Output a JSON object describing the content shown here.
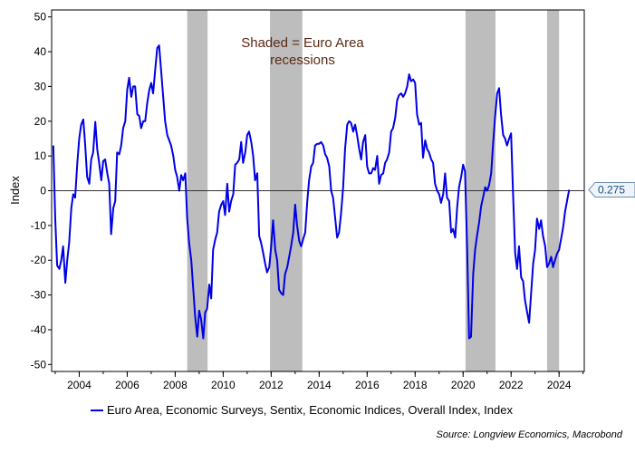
{
  "chart_data": {
    "type": "line",
    "title": "",
    "ylabel": "Index",
    "xlabel": "",
    "ylim": [
      -52,
      52
    ],
    "xlim": [
      2002.85,
      2025.05
    ],
    "yticks": [
      -50,
      -40,
      -30,
      -20,
      -10,
      0,
      10,
      20,
      30,
      40,
      50
    ],
    "xticks": [
      2004,
      2006,
      2008,
      2010,
      2012,
      2014,
      2016,
      2018,
      2020,
      2022,
      2024
    ],
    "zero_line": true,
    "annotation": "Shaded = Euro Area recessions",
    "annotation_lines": [
      "Shaded = Euro Area",
      "recessions"
    ],
    "last_value_label": "0.275",
    "recessions": [
      [
        2008.5,
        2009.35
      ],
      [
        2011.95,
        2013.3
      ],
      [
        2020.1,
        2021.35
      ],
      [
        2023.5,
        2024.0
      ]
    ],
    "series": [
      {
        "name": "Euro Area, Economic Surveys, Sentix, Economic Indices, Overall Index, Index",
        "color": "#0000e6",
        "points": [
          [
            2002.92,
            13
          ],
          [
            2003.0,
            -8
          ],
          [
            2003.08,
            -21.5
          ],
          [
            2003.17,
            -22.5
          ],
          [
            2003.25,
            -20
          ],
          [
            2003.33,
            -16
          ],
          [
            2003.42,
            -26.5
          ],
          [
            2003.5,
            -20
          ],
          [
            2003.58,
            -15
          ],
          [
            2003.67,
            -5
          ],
          [
            2003.75,
            -1
          ],
          [
            2003.83,
            -2
          ],
          [
            2003.92,
            8
          ],
          [
            2004.0,
            15
          ],
          [
            2004.08,
            19
          ],
          [
            2004.17,
            20.5
          ],
          [
            2004.25,
            13
          ],
          [
            2004.33,
            4
          ],
          [
            2004.42,
            2
          ],
          [
            2004.5,
            9
          ],
          [
            2004.58,
            11
          ],
          [
            2004.67,
            19.8
          ],
          [
            2004.75,
            12
          ],
          [
            2004.83,
            8
          ],
          [
            2004.92,
            3
          ],
          [
            2005.0,
            8.5
          ],
          [
            2005.08,
            9
          ],
          [
            2005.17,
            5
          ],
          [
            2005.25,
            2
          ],
          [
            2005.33,
            -12.5
          ],
          [
            2005.42,
            -5
          ],
          [
            2005.5,
            -3
          ],
          [
            2005.58,
            11
          ],
          [
            2005.67,
            10.5
          ],
          [
            2005.75,
            13
          ],
          [
            2005.83,
            18
          ],
          [
            2005.92,
            20
          ],
          [
            2006.0,
            29
          ],
          [
            2006.08,
            32.5
          ],
          [
            2006.17,
            27
          ],
          [
            2006.25,
            30
          ],
          [
            2006.33,
            30
          ],
          [
            2006.42,
            22
          ],
          [
            2006.5,
            21.5
          ],
          [
            2006.58,
            18
          ],
          [
            2006.67,
            20
          ],
          [
            2006.75,
            20
          ],
          [
            2006.83,
            25
          ],
          [
            2006.92,
            29
          ],
          [
            2007.0,
            31
          ],
          [
            2007.08,
            28
          ],
          [
            2007.17,
            35
          ],
          [
            2007.25,
            41
          ],
          [
            2007.33,
            41.8
          ],
          [
            2007.42,
            34
          ],
          [
            2007.5,
            27
          ],
          [
            2007.58,
            20
          ],
          [
            2007.67,
            16
          ],
          [
            2007.75,
            14.5
          ],
          [
            2007.83,
            13
          ],
          [
            2007.92,
            10
          ],
          [
            2008.0,
            6
          ],
          [
            2008.08,
            4
          ],
          [
            2008.17,
            0
          ],
          [
            2008.25,
            4.5
          ],
          [
            2008.33,
            3
          ],
          [
            2008.42,
            5
          ],
          [
            2008.5,
            -8
          ],
          [
            2008.58,
            -15
          ],
          [
            2008.67,
            -20
          ],
          [
            2008.75,
            -28
          ],
          [
            2008.83,
            -36
          ],
          [
            2008.92,
            -42
          ],
          [
            2009.0,
            -34.5
          ],
          [
            2009.08,
            -37
          ],
          [
            2009.17,
            -42.5
          ],
          [
            2009.25,
            -35
          ],
          [
            2009.33,
            -34
          ],
          [
            2009.42,
            -27
          ],
          [
            2009.5,
            -31
          ],
          [
            2009.58,
            -17
          ],
          [
            2009.67,
            -14
          ],
          [
            2009.75,
            -12
          ],
          [
            2009.83,
            -6
          ],
          [
            2009.92,
            -4
          ],
          [
            2010.0,
            -3
          ],
          [
            2010.08,
            -7
          ],
          [
            2010.17,
            2
          ],
          [
            2010.25,
            -6
          ],
          [
            2010.33,
            -3
          ],
          [
            2010.42,
            -1
          ],
          [
            2010.5,
            7.5
          ],
          [
            2010.58,
            8
          ],
          [
            2010.67,
            9
          ],
          [
            2010.75,
            14
          ],
          [
            2010.83,
            8
          ],
          [
            2010.92,
            11
          ],
          [
            2011.0,
            16
          ],
          [
            2011.08,
            17
          ],
          [
            2011.17,
            14
          ],
          [
            2011.25,
            10
          ],
          [
            2011.33,
            3
          ],
          [
            2011.42,
            5
          ],
          [
            2011.5,
            -13
          ],
          [
            2011.58,
            -15
          ],
          [
            2011.67,
            -18
          ],
          [
            2011.75,
            -21
          ],
          [
            2011.83,
            -23.5
          ],
          [
            2011.92,
            -22
          ],
          [
            2012.0,
            -16
          ],
          [
            2012.08,
            -8.5
          ],
          [
            2012.17,
            -17
          ],
          [
            2012.25,
            -20
          ],
          [
            2012.33,
            -28.5
          ],
          [
            2012.42,
            -29.5
          ],
          [
            2012.5,
            -30
          ],
          [
            2012.58,
            -24
          ],
          [
            2012.67,
            -22
          ],
          [
            2012.75,
            -19
          ],
          [
            2012.83,
            -16
          ],
          [
            2012.92,
            -12
          ],
          [
            2013.0,
            -4
          ],
          [
            2013.08,
            -10
          ],
          [
            2013.17,
            -14.5
          ],
          [
            2013.25,
            -16
          ],
          [
            2013.33,
            -14
          ],
          [
            2013.42,
            -12
          ],
          [
            2013.5,
            -3.5
          ],
          [
            2013.58,
            3
          ],
          [
            2013.67,
            7
          ],
          [
            2013.75,
            8
          ],
          [
            2013.83,
            13
          ],
          [
            2013.92,
            13.5
          ],
          [
            2014.0,
            13.5
          ],
          [
            2014.08,
            14
          ],
          [
            2014.17,
            13
          ],
          [
            2014.25,
            10.5
          ],
          [
            2014.33,
            9.5
          ],
          [
            2014.42,
            7
          ],
          [
            2014.5,
            0
          ],
          [
            2014.58,
            -2
          ],
          [
            2014.67,
            -8
          ],
          [
            2014.75,
            -13.5
          ],
          [
            2014.83,
            -12
          ],
          [
            2014.92,
            -6
          ],
          [
            2015.0,
            1
          ],
          [
            2015.08,
            12
          ],
          [
            2015.17,
            19
          ],
          [
            2015.25,
            20
          ],
          [
            2015.33,
            19.5
          ],
          [
            2015.42,
            17
          ],
          [
            2015.5,
            19
          ],
          [
            2015.58,
            16
          ],
          [
            2015.67,
            12
          ],
          [
            2015.75,
            9
          ],
          [
            2015.83,
            14
          ],
          [
            2015.92,
            16
          ],
          [
            2016.0,
            7
          ],
          [
            2016.08,
            5
          ],
          [
            2016.17,
            5
          ],
          [
            2016.25,
            6.5
          ],
          [
            2016.33,
            6
          ],
          [
            2016.42,
            10
          ],
          [
            2016.5,
            2
          ],
          [
            2016.58,
            4.5
          ],
          [
            2016.67,
            5
          ],
          [
            2016.75,
            8
          ],
          [
            2016.83,
            9
          ],
          [
            2016.92,
            11
          ],
          [
            2017.0,
            17
          ],
          [
            2017.08,
            18
          ],
          [
            2017.17,
            21
          ],
          [
            2017.25,
            26
          ],
          [
            2017.33,
            27.5
          ],
          [
            2017.42,
            28
          ],
          [
            2017.5,
            27
          ],
          [
            2017.58,
            28
          ],
          [
            2017.67,
            30
          ],
          [
            2017.75,
            33.5
          ],
          [
            2017.83,
            31.5
          ],
          [
            2017.92,
            32
          ],
          [
            2018.0,
            31
          ],
          [
            2018.08,
            22
          ],
          [
            2018.17,
            19
          ],
          [
            2018.25,
            19.5
          ],
          [
            2018.33,
            9.5
          ],
          [
            2018.42,
            14.5
          ],
          [
            2018.5,
            12
          ],
          [
            2018.58,
            11
          ],
          [
            2018.67,
            9
          ],
          [
            2018.75,
            8
          ],
          [
            2018.83,
            2
          ],
          [
            2018.92,
            0
          ],
          [
            2019.0,
            -1
          ],
          [
            2019.08,
            -3.5
          ],
          [
            2019.17,
            -1
          ],
          [
            2019.25,
            5
          ],
          [
            2019.33,
            -2
          ],
          [
            2019.42,
            -3
          ],
          [
            2019.5,
            -12
          ],
          [
            2019.58,
            -11
          ],
          [
            2019.67,
            -13.5
          ],
          [
            2019.75,
            -5
          ],
          [
            2019.83,
            1
          ],
          [
            2019.92,
            4
          ],
          [
            2020.0,
            7.5
          ],
          [
            2020.08,
            5.5
          ],
          [
            2020.17,
            -17
          ],
          [
            2020.25,
            -42.5
          ],
          [
            2020.33,
            -42
          ],
          [
            2020.42,
            -24
          ],
          [
            2020.5,
            -17
          ],
          [
            2020.58,
            -13
          ],
          [
            2020.67,
            -9
          ],
          [
            2020.75,
            -4.5
          ],
          [
            2020.83,
            -2
          ],
          [
            2020.92,
            1
          ],
          [
            2021.0,
            0
          ],
          [
            2021.08,
            1.5
          ],
          [
            2021.17,
            5
          ],
          [
            2021.25,
            13.5
          ],
          [
            2021.33,
            21
          ],
          [
            2021.42,
            28
          ],
          [
            2021.5,
            29.5
          ],
          [
            2021.58,
            22
          ],
          [
            2021.67,
            16
          ],
          [
            2021.75,
            15
          ],
          [
            2021.83,
            13
          ],
          [
            2021.92,
            15
          ],
          [
            2022.0,
            16.5
          ],
          [
            2022.08,
            -0.5
          ],
          [
            2022.17,
            -18
          ],
          [
            2022.25,
            -22.5
          ],
          [
            2022.33,
            -16
          ],
          [
            2022.42,
            -25
          ],
          [
            2022.5,
            -26
          ],
          [
            2022.58,
            -31.5
          ],
          [
            2022.67,
            -35
          ],
          [
            2022.75,
            -38
          ],
          [
            2022.83,
            -30
          ],
          [
            2022.92,
            -21
          ],
          [
            2023.0,
            -17
          ],
          [
            2023.08,
            -8
          ],
          [
            2023.17,
            -11
          ],
          [
            2023.25,
            -8.5
          ],
          [
            2023.33,
            -13
          ],
          [
            2023.42,
            -16
          ],
          [
            2023.5,
            -22
          ],
          [
            2023.58,
            -21
          ],
          [
            2023.67,
            -19
          ],
          [
            2023.75,
            -22
          ],
          [
            2023.83,
            -20
          ],
          [
            2023.92,
            -18
          ],
          [
            2024.0,
            -17
          ],
          [
            2024.08,
            -14
          ],
          [
            2024.17,
            -10.5
          ],
          [
            2024.25,
            -6
          ],
          [
            2024.33,
            -3
          ],
          [
            2024.42,
            0.275
          ]
        ]
      }
    ]
  },
  "legend": {
    "label": "Euro Area, Economic Surveys, Sentix, Economic Indices, Overall Index, Index"
  },
  "source": "Source: Longview Economics, Macrobond"
}
